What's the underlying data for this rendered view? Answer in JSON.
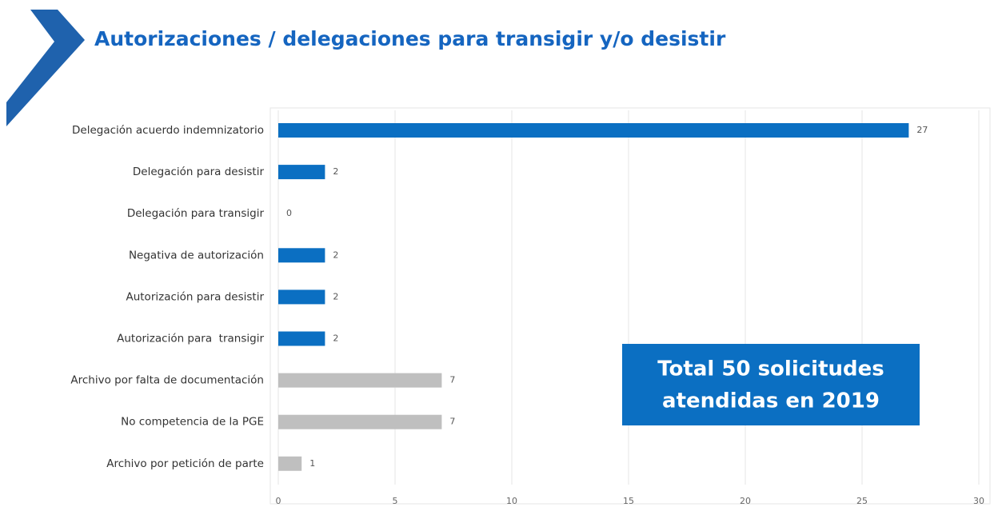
{
  "chart_data": {
    "type": "barh",
    "title": "Autorizaciones / delegaciones para transigir y/o desistir",
    "categories": [
      "Delegación acuerdo indemnizatorio",
      "Delegación para desistir",
      "Delegación para transigir",
      "Negativa de autorización",
      "Autorización para desistir",
      "Autorización para  transigir",
      "Archivo por falta de documentación",
      "No competencia de la PGE",
      "Archivo por petición de parte"
    ],
    "values": [
      27,
      2,
      0,
      2,
      2,
      2,
      7,
      7,
      1
    ],
    "colors": [
      "#0b6fc2",
      "#0b6fc2",
      "#0b6fc2",
      "#0b6fc2",
      "#0b6fc2",
      "#0b6fc2",
      "#bfbfbf",
      "#bfbfbf",
      "#bfbfbf"
    ],
    "xlim": [
      0,
      30
    ],
    "xticks": [
      0,
      5,
      10,
      15,
      20,
      25,
      30
    ],
    "grid": true,
    "annotation": [
      "Total 50 solicitudes",
      "atendidas en 2019"
    ]
  }
}
